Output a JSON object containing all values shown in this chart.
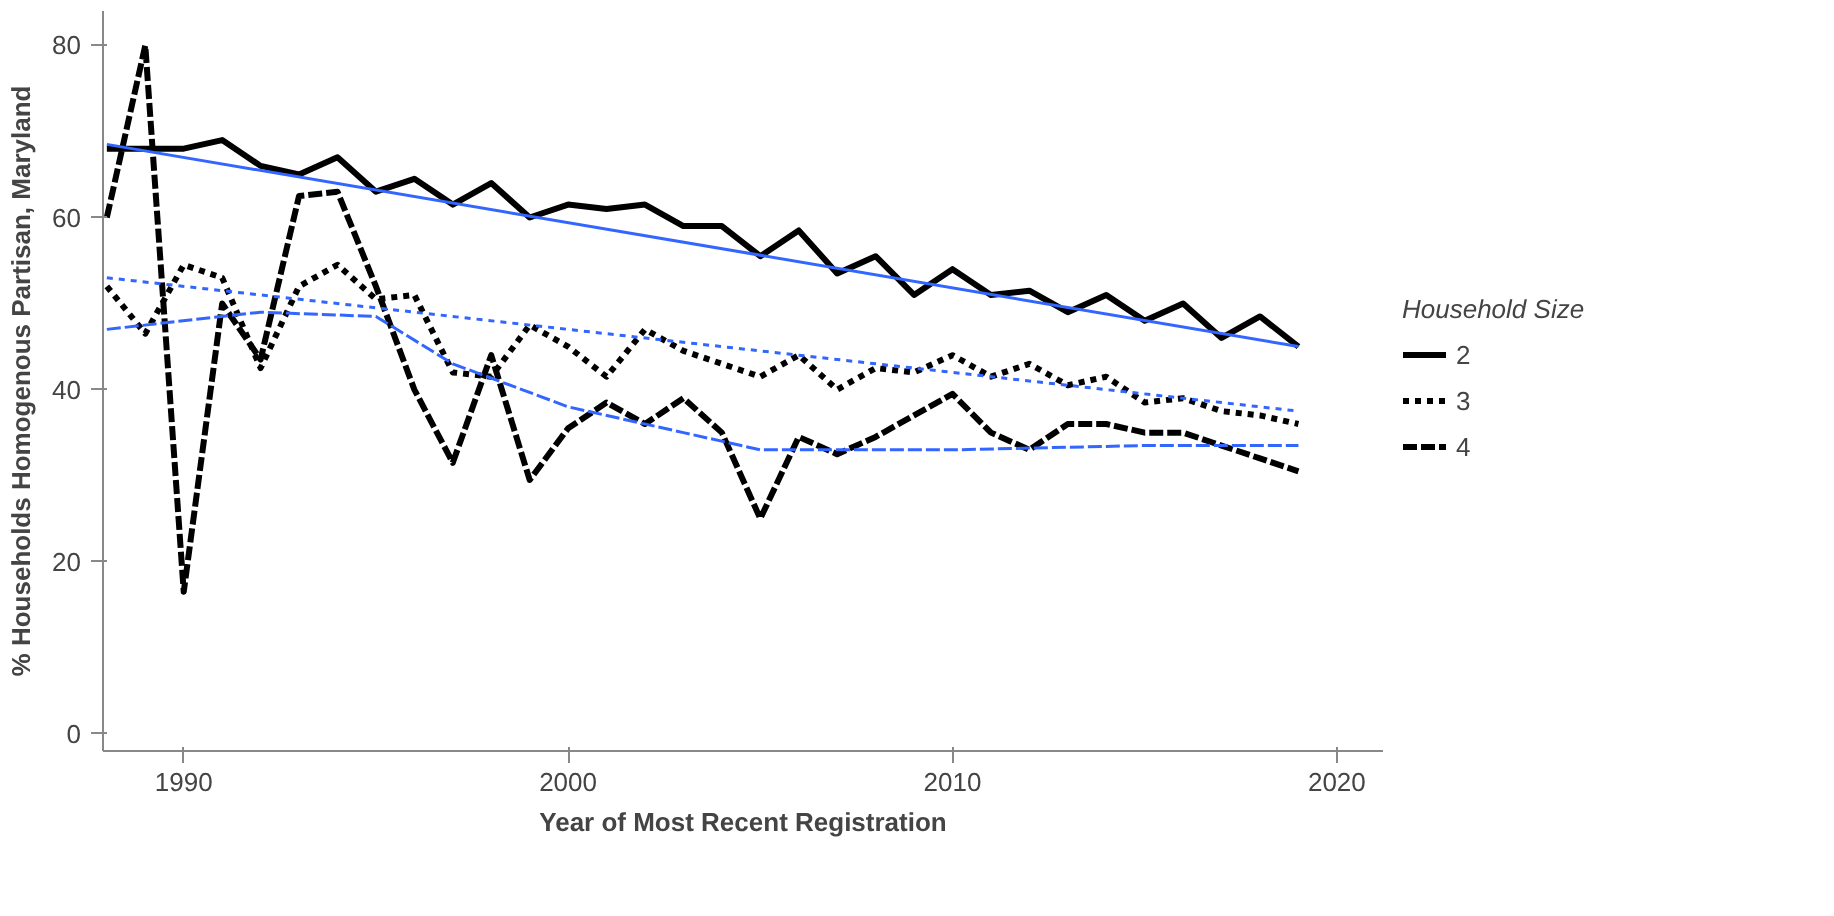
{
  "chart_data": {
    "type": "line",
    "xlabel": "Year of Most Recent Registration",
    "ylabel": "% Households Homogenous Partisan, Maryland",
    "legend_title": "Household Size",
    "legend": "right",
    "grid": false,
    "x": [
      1988,
      1989,
      1990,
      1991,
      1992,
      1993,
      1994,
      1995,
      1996,
      1997,
      1998,
      1999,
      2000,
      2001,
      2002,
      2003,
      2004,
      2005,
      2006,
      2007,
      2008,
      2009,
      2010,
      2011,
      2012,
      2013,
      2014,
      2015,
      2016,
      2017,
      2018,
      2019
    ],
    "xlim": [
      1987.9,
      2021.2
    ],
    "xticks": [
      1990,
      2000,
      2010,
      2020
    ],
    "ylim": [
      -2,
      84
    ],
    "yticks": [
      0,
      20,
      40,
      60,
      80
    ],
    "series": [
      {
        "name": "2",
        "color": "#000000",
        "line_style": "solid",
        "values": [
          68,
          68,
          68,
          69,
          66,
          65,
          67,
          63,
          64.5,
          61.5,
          64,
          60,
          61.5,
          61,
          61.5,
          59,
          59,
          55.5,
          58.5,
          53.5,
          55.5,
          51,
          54,
          51,
          51.5,
          49,
          51,
          48,
          50,
          46,
          48.5,
          45
        ]
      },
      {
        "name": "3",
        "color": "#000000",
        "line_style": "dotted",
        "values": [
          52,
          46.5,
          54.5,
          53,
          42.5,
          52,
          54.5,
          50.5,
          51,
          42,
          41.5,
          47.5,
          45,
          41.5,
          47,
          44.5,
          43,
          41.5,
          44,
          40,
          42.5,
          42,
          44,
          41.5,
          43,
          40.5,
          41.5,
          38.5,
          39,
          37.5,
          37,
          36
        ]
      },
      {
        "name": "4",
        "color": "#000000",
        "line_style": "dashed",
        "values": [
          60,
          80,
          16.5,
          50,
          43.5,
          62.5,
          63,
          52,
          40,
          31.5,
          44,
          29.5,
          35.5,
          38.5,
          36,
          39,
          35,
          25,
          34.5,
          32.5,
          34.5,
          37,
          39.5,
          35,
          33,
          36,
          36,
          35,
          35,
          33.5,
          32,
          30.5
        ]
      },
      {
        "type": "line",
        "color": "#3366ff",
        "line_style": "solid",
        "x": [
          1988,
          2019
        ],
        "values": [
          68.5,
          45
        ]
      },
      {
        "type": "line",
        "color": "#3366ff",
        "line_style": "dotted",
        "x": [
          1988,
          2019
        ],
        "values": [
          53,
          37.5
        ]
      },
      {
        "type": "line",
        "color": "#3366ff",
        "line_style": "dashed",
        "x": [
          1988,
          1992,
          1995,
          1997,
          2000,
          2003,
          2005,
          2010,
          2015,
          2019
        ],
        "values": [
          47,
          49,
          48.5,
          43,
          38,
          35,
          33,
          33,
          33.5,
          33.5
        ]
      }
    ]
  }
}
